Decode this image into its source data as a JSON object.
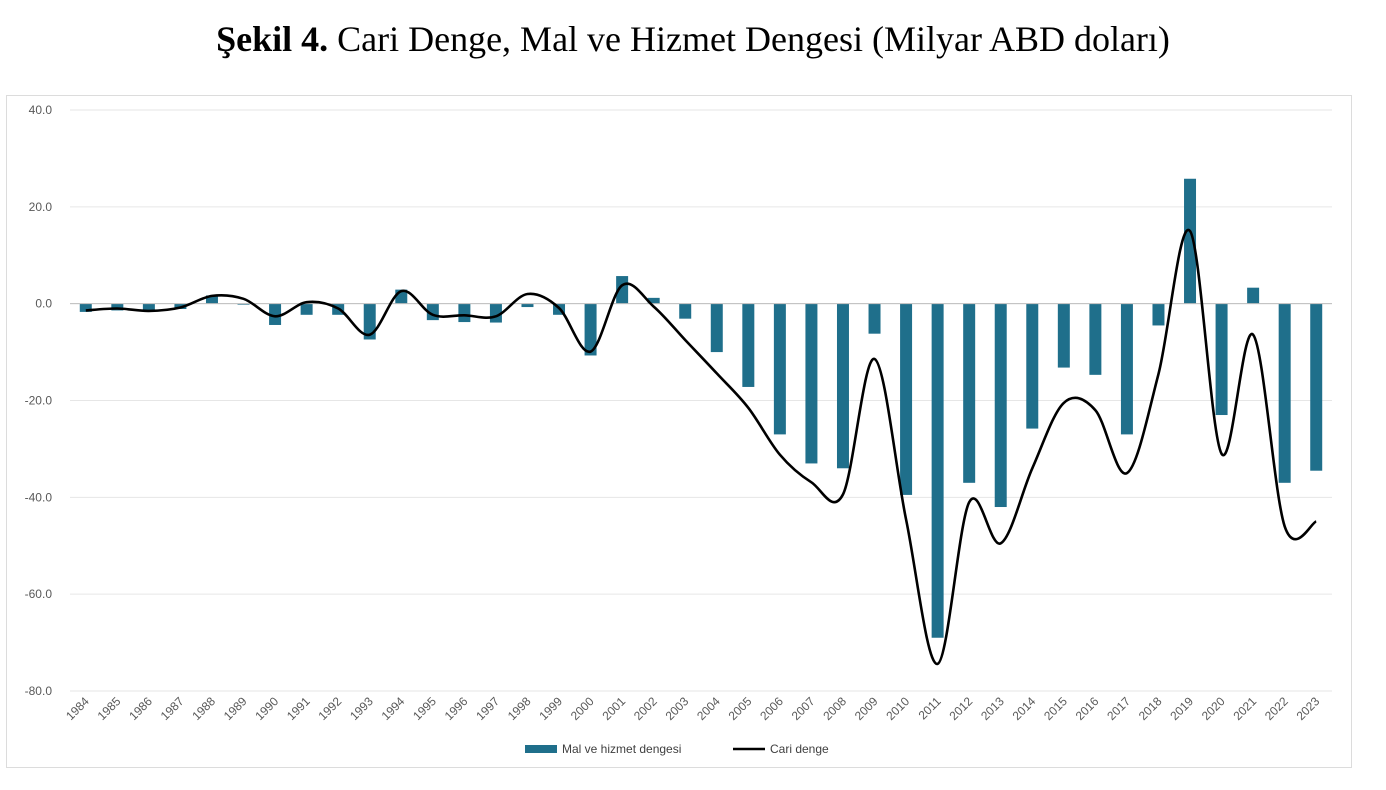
{
  "figure": {
    "label": "Şekil 4.",
    "title": "Cari Denge, Mal ve Hizmet Dengesi (Milyar ABD doları)"
  },
  "chart_data": {
    "type": "bar",
    "categories": [
      "1984",
      "1985",
      "1986",
      "1987",
      "1988",
      "1989",
      "1990",
      "1991",
      "1992",
      "1993",
      "1994",
      "1995",
      "1996",
      "1997",
      "1998",
      "1999",
      "2000",
      "2001",
      "2002",
      "2003",
      "2004",
      "2005",
      "2006",
      "2007",
      "2008",
      "2009",
      "2010",
      "2011",
      "2012",
      "2013",
      "2014",
      "2015",
      "2016",
      "2017",
      "2018",
      "2019",
      "2020",
      "2021",
      "2022",
      "2023"
    ],
    "ylim": [
      -80,
      40
    ],
    "yticks": [
      40,
      20,
      0,
      -20,
      -40,
      -60,
      -80
    ],
    "ytick_labels": [
      "40.0",
      "20.0",
      "0.0",
      "-20.0",
      "-40.0",
      "-60.0",
      "-80.0"
    ],
    "grid": true,
    "legend_position": "bottom",
    "colors": {
      "bars": "#1f6f8b",
      "line": "#000000",
      "grid": "#e6e6e6",
      "axis": "#bfbfbf"
    },
    "series": [
      {
        "name": "Mal ve hizmet dengesi",
        "type": "bar",
        "values": [
          -1.7,
          -1.4,
          -1.6,
          -1.1,
          1.7,
          -0.2,
          -4.4,
          -2.3,
          -2.3,
          -7.4,
          2.9,
          -3.4,
          -3.8,
          -3.9,
          -0.7,
          -2.3,
          -10.7,
          5.7,
          1.2,
          -3.1,
          -10.0,
          -17.2,
          -27.0,
          -33.0,
          -34.0,
          -6.2,
          -39.5,
          -69.0,
          -37.0,
          -42.0,
          -25.8,
          -13.2,
          -14.7,
          -27.0,
          -4.5,
          25.8,
          -23.0,
          3.3,
          -37.0,
          -34.5
        ]
      },
      {
        "name": "Cari denge",
        "type": "line",
        "values": [
          -1.4,
          -1.0,
          -1.5,
          -0.8,
          1.6,
          1.0,
          -2.6,
          0.3,
          -1.0,
          -6.4,
          2.6,
          -2.3,
          -2.4,
          -2.6,
          2.0,
          -0.9,
          -9.9,
          3.8,
          -0.6,
          -7.5,
          -14.4,
          -21.5,
          -31.2,
          -36.9,
          -39.4,
          -11.4,
          -44.6,
          -74.4,
          -41.0,
          -49.5,
          -34.0,
          -20.5,
          -22.0,
          -35.0,
          -14.5,
          15.0,
          -31.0,
          -6.4,
          -46.0,
          -45.0
        ]
      }
    ]
  }
}
